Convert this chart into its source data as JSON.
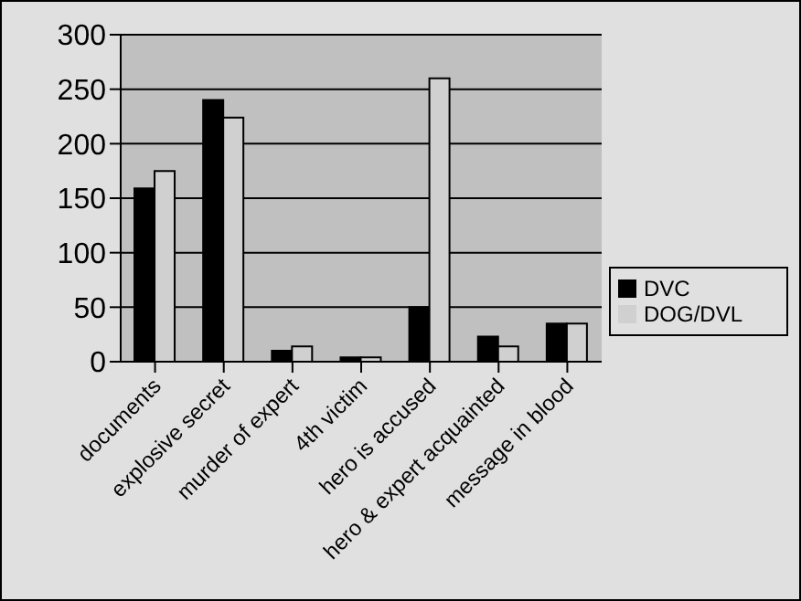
{
  "chart_data": {
    "type": "bar",
    "categories": [
      "documents",
      "explosive secret",
      "murder of expert",
      "4th victim",
      "hero is accused",
      "hero & expert acquainted",
      "message in blood"
    ],
    "series": [
      {
        "name": "DVC",
        "color": "#000000",
        "values": [
          159,
          240,
          10,
          4,
          50,
          23,
          35
        ]
      },
      {
        "name": "DOG/DVL",
        "color": "#d0d0d0",
        "values": [
          175,
          224,
          14,
          4,
          260,
          14,
          35
        ]
      }
    ],
    "ylim": [
      0,
      300
    ],
    "yticks": [
      0,
      50,
      100,
      150,
      200,
      250,
      300
    ],
    "grid": "y",
    "legend": "right"
  }
}
